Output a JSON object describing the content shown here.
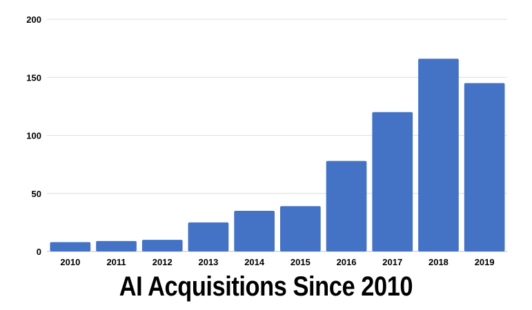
{
  "chart_data": {
    "type": "bar",
    "title": "AI Acquisitions Since 2010",
    "xlabel": "",
    "ylabel": "",
    "categories": [
      "2010",
      "2011",
      "2012",
      "2013",
      "2014",
      "2015",
      "2016",
      "2017",
      "2018",
      "2019"
    ],
    "values": [
      8,
      9,
      10,
      25,
      35,
      39,
      78,
      120,
      166,
      145
    ],
    "ylim": [
      0,
      200
    ],
    "yticks": [
      0,
      50,
      100,
      150,
      200
    ],
    "grid": true,
    "legend": "none",
    "bar_color": "#4472c4"
  }
}
